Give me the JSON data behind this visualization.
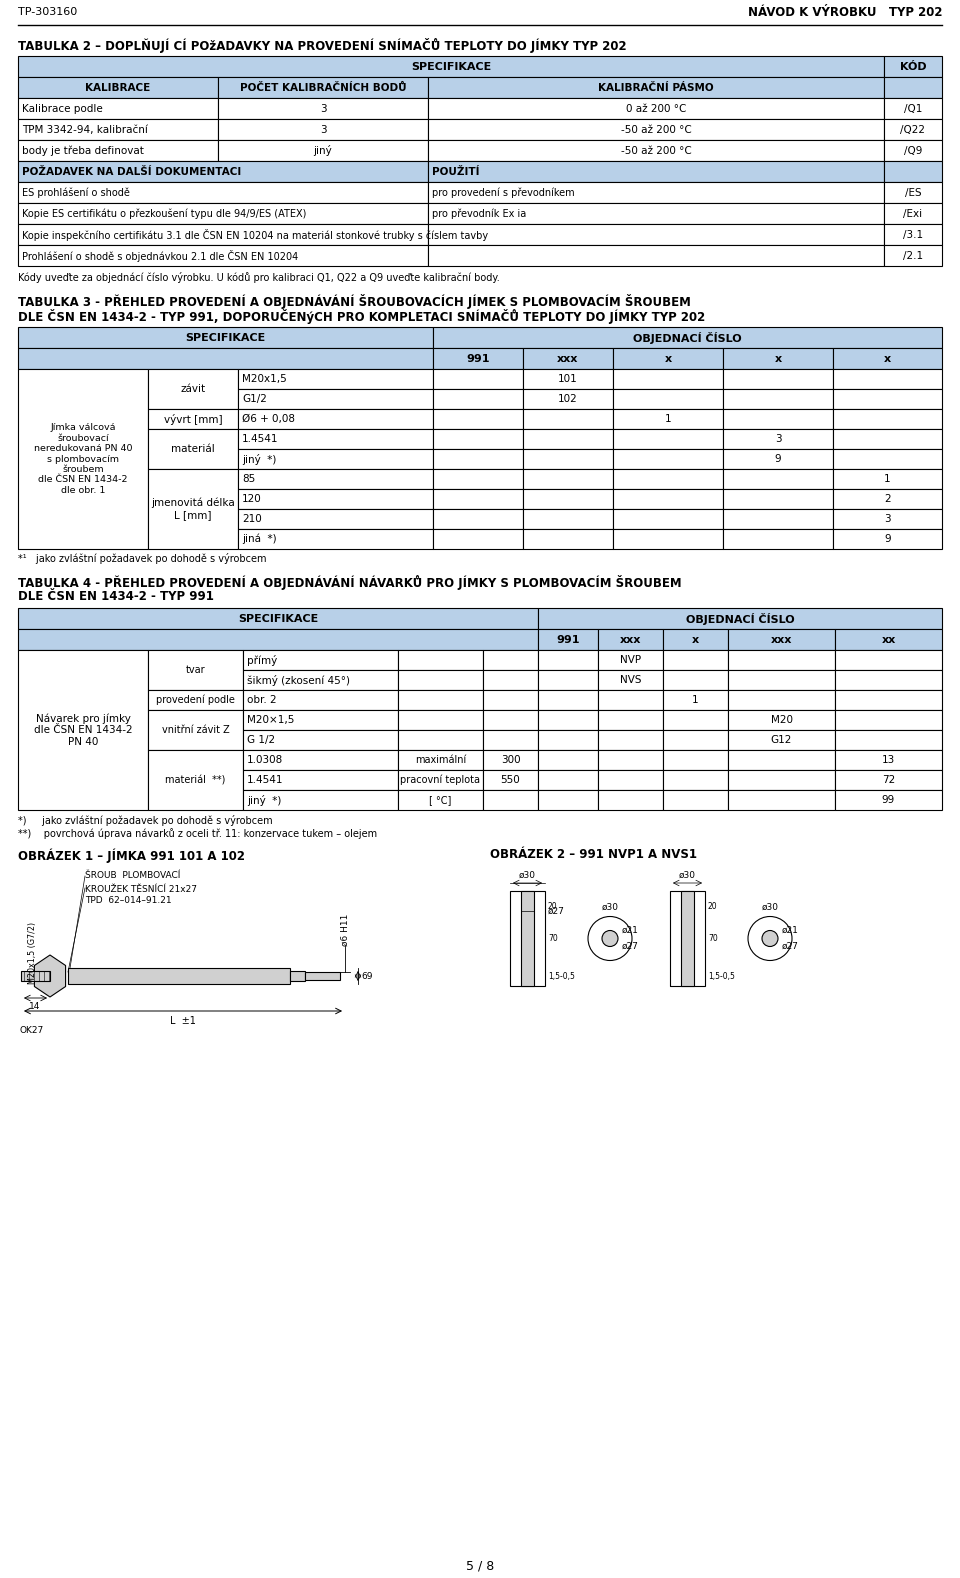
{
  "header_left": "TP-303160",
  "header_right": "NÁVOD K VÝROBKU   TYP 202",
  "page_footer": "5 / 8",
  "bg_color": "#ffffff",
  "blue_header": "#b8d0e8",
  "table2_title": "TABULKA 2 – DOPLŇUJÍ CÍ POžADAVKY NA PROVEDENÍ SNÍMAČŮ TEPLOTY DO JÍMKY TYP 202",
  "table3_title_l1": "TABULKA 3 - PŘEHLED PROVEDENÍ A OBJEDNÁVÁNÍ ŠROUBOVACÍCH JÍMEK S PLOMBOVACÍM ŠROUBEM",
  "table3_title_l2": "DLE ČSN EN 1434-2 - TYP 991, DOPORUČENýCH PRO KOMPLETACI SNÍMAČŮ TEPLOTY DO JÍMKY TYP 202",
  "table4_title_l1": "TABULKA 4 - PŘEHLED PROVEDENÍ A OBJEDNÁVÁNÍ NÁVARKŮ PRO JÍMKY S PLOMBOVACÍM ŠROUBEM",
  "table4_title_l2": "DLE ČSN EN 1434-2 - TYP 991",
  "fig1_title": "OBRÁZEK 1 – JÍMKA 991 101 A 102",
  "fig2_title": "OBRÁZEK 2 – 991 NVP1 A NVS1",
  "note2": "Kódy uveďte za objednácí číslo výrobku. U kódů pro kalibraci Q1, Q22 a Q9 uveďte kalibrační body.",
  "footnote3": "*¹   jako zvláštní požadavek po dohodě s výrobcem",
  "footnote4a": "*)     jako zvláštní požadavek po dohodě s výrobcem",
  "footnote4b": "**)    povrchová úprava návarků z oceli tř. 11: konzervace tukem – olejem"
}
